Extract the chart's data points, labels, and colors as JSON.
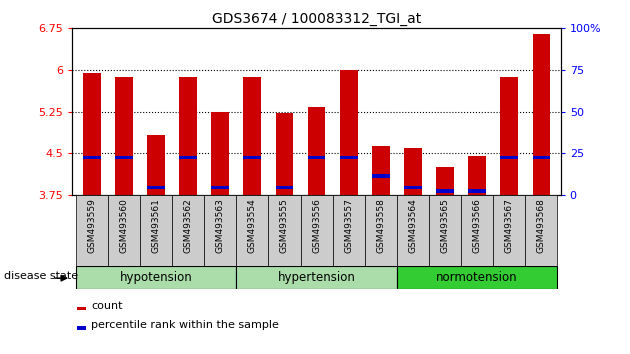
{
  "title": "GDS3674 / 100083312_TGI_at",
  "samples": [
    "GSM493559",
    "GSM493560",
    "GSM493561",
    "GSM493562",
    "GSM493563",
    "GSM493554",
    "GSM493555",
    "GSM493556",
    "GSM493557",
    "GSM493558",
    "GSM493564",
    "GSM493565",
    "GSM493566",
    "GSM493567",
    "GSM493568"
  ],
  "count_values": [
    5.95,
    5.88,
    4.82,
    5.88,
    5.25,
    5.88,
    5.22,
    5.33,
    6.0,
    4.62,
    4.6,
    4.25,
    4.45,
    5.88,
    6.65
  ],
  "percentile_values": [
    4.42,
    4.42,
    3.88,
    4.42,
    3.88,
    4.42,
    3.88,
    4.42,
    4.42,
    4.08,
    3.88,
    3.82,
    3.82,
    4.42,
    4.42
  ],
  "bar_bottom": 3.75,
  "ylim": [
    3.75,
    6.75
  ],
  "yticks": [
    3.75,
    4.5,
    5.25,
    6.0,
    6.75
  ],
  "yticklabels": [
    "3.75",
    "4.5",
    "5.25",
    "6",
    "6.75"
  ],
  "right_yticklabels": [
    "0",
    "25",
    "50",
    "75",
    "100%"
  ],
  "bar_color": "#cc0000",
  "percentile_color": "#0000cc",
  "bar_width": 0.55,
  "group_defs": [
    {
      "start": 0,
      "end": 4,
      "label": "hypotension",
      "color": "#aaddaa"
    },
    {
      "start": 5,
      "end": 9,
      "label": "hypertension",
      "color": "#aaddaa"
    },
    {
      "start": 10,
      "end": 14,
      "label": "normotension",
      "color": "#33cc33"
    }
  ],
  "xtick_bg": "#cccccc",
  "disease_state_label": "disease state",
  "legend_items": [
    {
      "label": "count",
      "color": "#cc0000"
    },
    {
      "label": "percentile rank within the sample",
      "color": "#0000cc"
    }
  ]
}
